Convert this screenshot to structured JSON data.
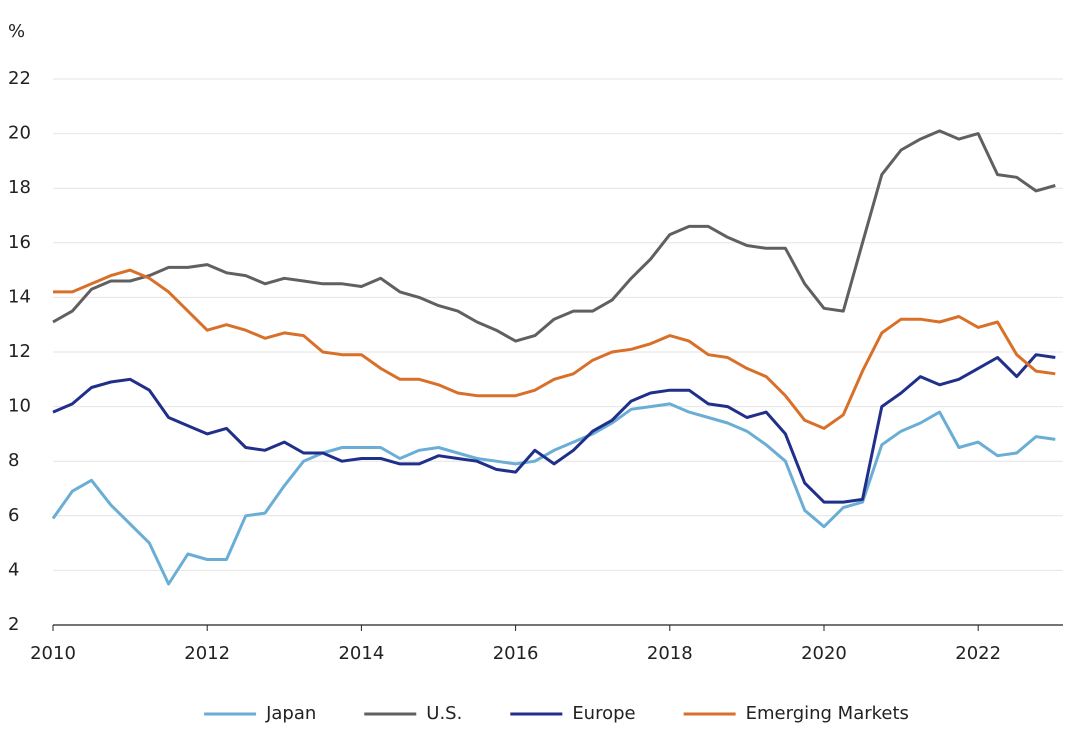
{
  "chart_data": {
    "type": "line",
    "y_label": "%",
    "x": [
      2010,
      2010.25,
      2010.5,
      2010.75,
      2011,
      2011.25,
      2011.5,
      2011.75,
      2012,
      2012.25,
      2012.5,
      2012.75,
      2013,
      2013.25,
      2013.5,
      2013.75,
      2014,
      2014.25,
      2014.5,
      2014.75,
      2015,
      2015.25,
      2015.5,
      2015.75,
      2016,
      2016.25,
      2016.5,
      2016.75,
      2017,
      2017.25,
      2017.5,
      2017.75,
      2018,
      2018.25,
      2018.5,
      2018.75,
      2019,
      2019.25,
      2019.5,
      2019.75,
      2020,
      2020.25,
      2020.5,
      2020.75,
      2021,
      2021.25,
      2021.5,
      2021.75,
      2022,
      2022.25,
      2022.5,
      2022.75,
      2023
    ],
    "series": [
      {
        "name": "Japan",
        "color": "#6aaed6",
        "values": [
          5.9,
          6.9,
          7.3,
          6.4,
          5.7,
          5.0,
          3.5,
          4.6,
          4.4,
          4.4,
          6.0,
          6.1,
          7.1,
          8.0,
          8.3,
          8.5,
          8.5,
          8.5,
          8.1,
          8.4,
          8.5,
          8.3,
          8.1,
          8.0,
          7.9,
          8.0,
          8.4,
          8.7,
          9.0,
          9.4,
          9.9,
          10.0,
          10.1,
          9.8,
          9.6,
          9.4,
          9.1,
          8.6,
          8.0,
          6.2,
          5.6,
          6.3,
          6.5,
          8.6,
          9.1,
          9.4,
          9.8,
          8.5,
          8.7,
          8.2,
          8.3,
          8.9,
          8.8
        ]
      },
      {
        "name": "U.S.",
        "color": "#606060",
        "values": [
          13.1,
          13.5,
          14.3,
          14.6,
          14.6,
          14.8,
          15.1,
          15.1,
          15.2,
          14.9,
          14.8,
          14.5,
          14.7,
          14.6,
          14.5,
          14.5,
          14.4,
          14.7,
          14.2,
          14.0,
          13.7,
          13.5,
          13.1,
          12.8,
          12.4,
          12.6,
          13.2,
          13.5,
          13.5,
          13.9,
          14.7,
          15.4,
          16.3,
          16.6,
          16.6,
          16.2,
          15.9,
          15.8,
          15.8,
          14.5,
          13.6,
          13.5,
          16.0,
          18.5,
          19.4,
          19.8,
          20.1,
          19.8,
          20.0,
          18.5,
          18.4,
          17.9,
          18.1
        ]
      },
      {
        "name": "Europe",
        "color": "#1f2f8a",
        "values": [
          9.8,
          10.1,
          10.7,
          10.9,
          11.0,
          10.6,
          9.6,
          9.3,
          9.0,
          9.2,
          8.5,
          8.4,
          8.7,
          8.3,
          8.3,
          8.0,
          8.1,
          8.1,
          7.9,
          7.9,
          8.2,
          8.1,
          8.0,
          7.7,
          7.6,
          8.4,
          7.9,
          8.4,
          9.1,
          9.5,
          10.2,
          10.5,
          10.6,
          10.6,
          10.1,
          10.0,
          9.6,
          9.8,
          9.0,
          7.2,
          6.5,
          6.5,
          6.6,
          10.0,
          10.5,
          11.1,
          10.8,
          11.0,
          11.4,
          11.8,
          11.1,
          11.9,
          11.8
        ]
      },
      {
        "name": "Emerging Markets",
        "color": "#d9702a",
        "values": [
          14.2,
          14.2,
          14.5,
          14.8,
          15.0,
          14.7,
          14.2,
          13.5,
          12.8,
          13.0,
          12.8,
          12.5,
          12.7,
          12.6,
          12.0,
          11.9,
          11.9,
          11.4,
          11.0,
          11.0,
          10.8,
          10.5,
          10.4,
          10.4,
          10.4,
          10.6,
          11.0,
          11.2,
          11.7,
          12.0,
          12.1,
          12.3,
          12.6,
          12.4,
          11.9,
          11.8,
          11.4,
          11.1,
          10.4,
          9.5,
          9.2,
          9.7,
          11.3,
          12.7,
          13.2,
          13.2,
          13.1,
          13.3,
          12.9,
          13.1,
          11.9,
          11.3,
          11.2
        ]
      }
    ],
    "xlim": [
      2010,
      2023.1
    ],
    "xticks": [
      2010,
      2012,
      2014,
      2016,
      2018,
      2020,
      2022
    ],
    "ylim": [
      2,
      22
    ],
    "yticks": [
      2,
      4,
      6,
      8,
      10,
      12,
      14,
      16,
      18,
      20,
      22
    ],
    "grid": true,
    "legend": "bottom"
  }
}
